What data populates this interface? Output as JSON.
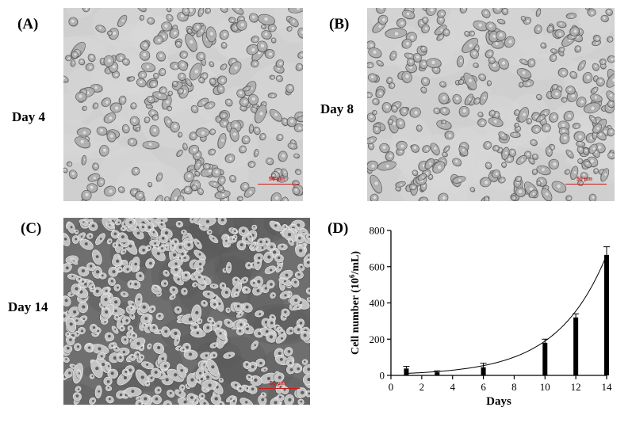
{
  "panels": [
    {
      "label": "(A)",
      "day": "Day 4",
      "scale_text": "50 µm",
      "density": 0.55,
      "tone": "light"
    },
    {
      "label": "(B)",
      "day": "Day 8",
      "scale_text": "50 µm",
      "density": 0.6,
      "tone": "light"
    },
    {
      "label": "(C)",
      "day": "Day 14",
      "scale_text": "50 µm",
      "density": 1.0,
      "tone": "dark"
    },
    {
      "label": "(D)"
    }
  ],
  "chart_data": {
    "type": "bar",
    "x": [
      1,
      3,
      6,
      10,
      12,
      14
    ],
    "values": [
      38,
      17,
      45,
      180,
      320,
      665
    ],
    "errors": [
      12,
      8,
      22,
      20,
      20,
      45
    ],
    "trendline": "exponential fit curve",
    "xlabel": "Days",
    "ylabel_main": "Cell number (10",
    "ylabel_sup": "6",
    "ylabel_end": "/mL)",
    "xlim": [
      0,
      14
    ],
    "ylim": [
      0,
      800
    ],
    "xticks": [
      0,
      2,
      4,
      6,
      8,
      10,
      12,
      14
    ],
    "yticks": [
      0,
      200,
      400,
      600,
      800
    ],
    "grid": false,
    "bar_color": "#000000",
    "axis_color": "#000000"
  }
}
